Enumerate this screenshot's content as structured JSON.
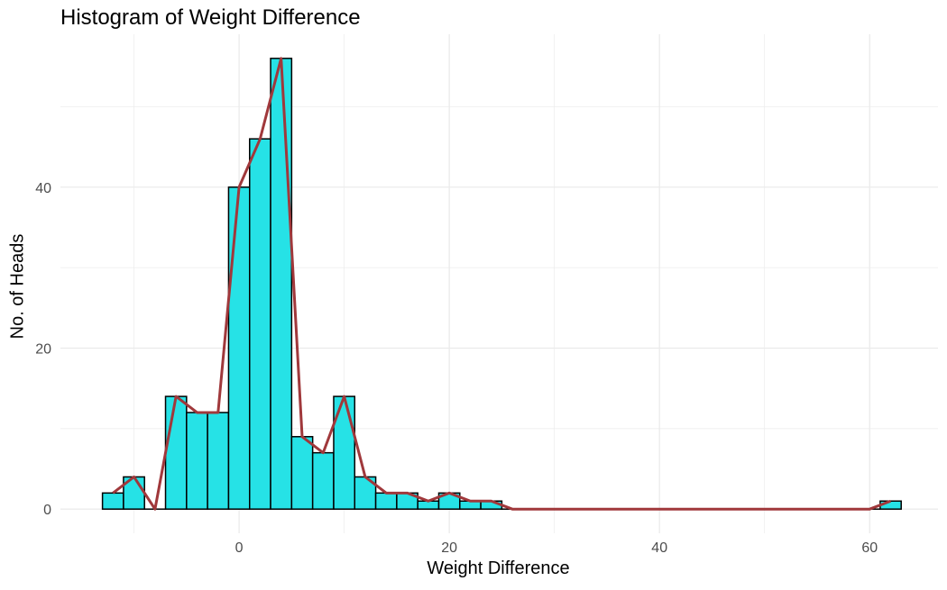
{
  "chart_data": {
    "type": "bar",
    "title": "Histogram of Weight Difference",
    "xlabel": "Weight Difference",
    "ylabel": "No. of Heads",
    "bin_width": 2,
    "bin_centers": [
      -12,
      -10,
      -8,
      -6,
      -4,
      -2,
      0,
      2,
      4,
      6,
      8,
      10,
      12,
      14,
      16,
      18,
      20,
      22,
      24,
      26,
      28,
      30,
      32,
      34,
      36,
      38,
      40,
      42,
      44,
      46,
      48,
      50,
      52,
      54,
      56,
      58,
      60,
      62
    ],
    "counts": [
      2,
      4,
      0,
      14,
      12,
      12,
      40,
      46,
      56,
      9,
      7,
      14,
      4,
      2,
      2,
      1,
      2,
      1,
      1,
      0,
      0,
      0,
      0,
      0,
      0,
      0,
      0,
      0,
      0,
      0,
      0,
      0,
      0,
      0,
      0,
      0,
      0,
      1
    ],
    "frequency_polygon": {
      "x": [
        -12,
        -10,
        -8,
        -6,
        -4,
        -2,
        0,
        2,
        4,
        6,
        8,
        10,
        12,
        14,
        16,
        18,
        20,
        22,
        24,
        26,
        28,
        30,
        32,
        34,
        36,
        38,
        40,
        42,
        44,
        46,
        48,
        50,
        52,
        54,
        56,
        58,
        60,
        62
      ],
      "y": [
        2,
        4,
        0,
        14,
        12,
        12,
        40,
        46,
        56,
        9,
        7,
        14,
        4,
        2,
        2,
        1,
        2,
        1,
        1,
        0,
        0,
        0,
        0,
        0,
        0,
        0,
        0,
        0,
        0,
        0,
        0,
        0,
        0,
        0,
        0,
        0,
        0,
        1
      ]
    },
    "xlim": [
      -17,
      66.5
    ],
    "ylim": [
      -3,
      59
    ],
    "x_ticks": [
      0,
      20,
      40,
      60
    ],
    "y_ticks": [
      0,
      20,
      40
    ],
    "grid": true,
    "colors": {
      "bar_fill": "#26E2E6",
      "bar_outline": "#000000",
      "line": "#A0383B",
      "grid": "#EBEBEB"
    }
  }
}
